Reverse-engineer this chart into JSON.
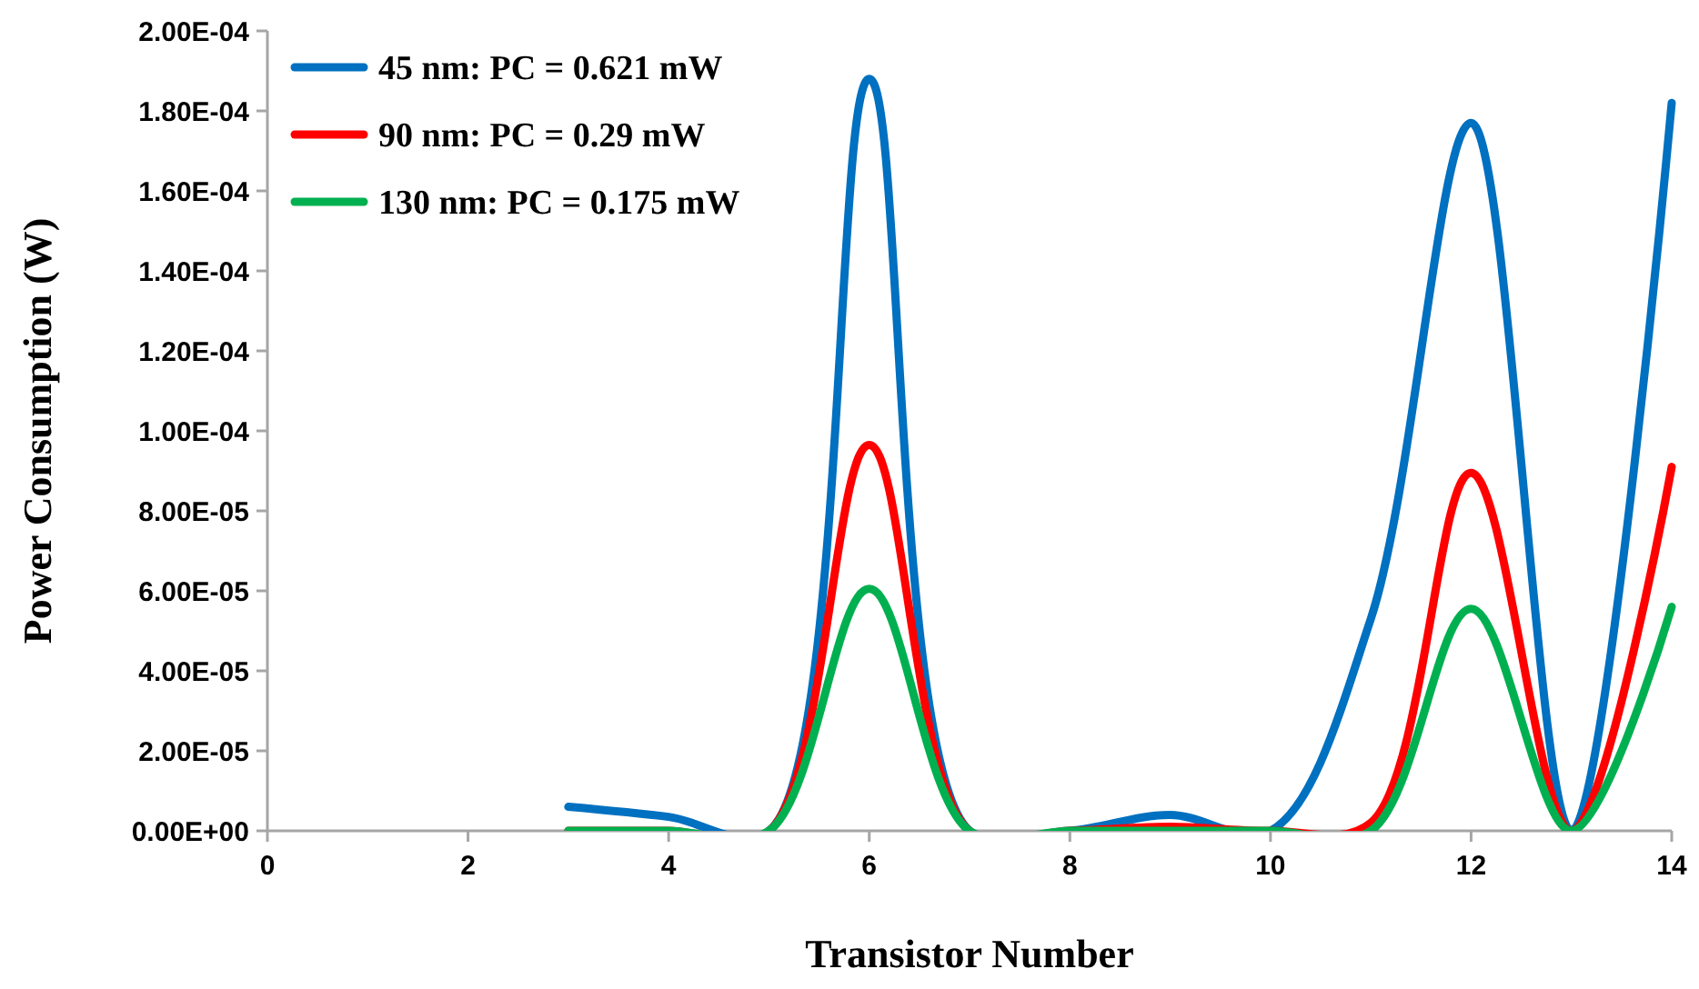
{
  "chart_data": {
    "type": "line",
    "xlabel": "Transistor Number",
    "ylabel": "Power Consumption (W)",
    "x": [
      3,
      4,
      5,
      6,
      7,
      8,
      9,
      10,
      11,
      12,
      13,
      14
    ],
    "series": [
      {
        "name": "45 nm: PC = 0.621 mW",
        "color": "#0070c0",
        "values": [
          6e-06,
          3.5e-06,
          0,
          0.000188,
          0,
          0,
          4e-06,
          0,
          5.3e-05,
          0.000177,
          0,
          0.000182
        ]
      },
      {
        "name": "90 nm: PC = 0.29 mW",
        "color": "#ff0000",
        "values": [
          0,
          0,
          0,
          9.65e-05,
          0,
          0,
          1e-06,
          0,
          2e-06,
          8.95e-05,
          0,
          9.1e-05
        ]
      },
      {
        "name": "130 nm: PC = 0.175 mW",
        "color": "#00b050",
        "values": [
          0,
          0,
          0,
          6.05e-05,
          0,
          0,
          0,
          0,
          0,
          5.55e-05,
          0,
          5.6e-05
        ]
      }
    ],
    "xlim": [
      0,
      14
    ],
    "xticks": [
      0,
      2,
      4,
      6,
      8,
      10,
      12,
      14
    ],
    "ylim": [
      0,
      0.0002
    ],
    "yticks": [
      {
        "value": 0,
        "label": "0.00E+00"
      },
      {
        "value": 2e-05,
        "label": "2.00E-05"
      },
      {
        "value": 4e-05,
        "label": "4.00E-05"
      },
      {
        "value": 6e-05,
        "label": "6.00E-05"
      },
      {
        "value": 8e-05,
        "label": "8.00E-05"
      },
      {
        "value": 0.0001,
        "label": "1.00E-04"
      },
      {
        "value": 0.00012,
        "label": "1.20E-04"
      },
      {
        "value": 0.00014,
        "label": "1.40E-04"
      },
      {
        "value": 0.00016,
        "label": "1.60E-04"
      },
      {
        "value": 0.00018,
        "label": "1.80E-04"
      },
      {
        "value": 0.0002,
        "label": "2.00E-04"
      }
    ],
    "grid": false,
    "legend": "top left",
    "line_style": "solid"
  }
}
